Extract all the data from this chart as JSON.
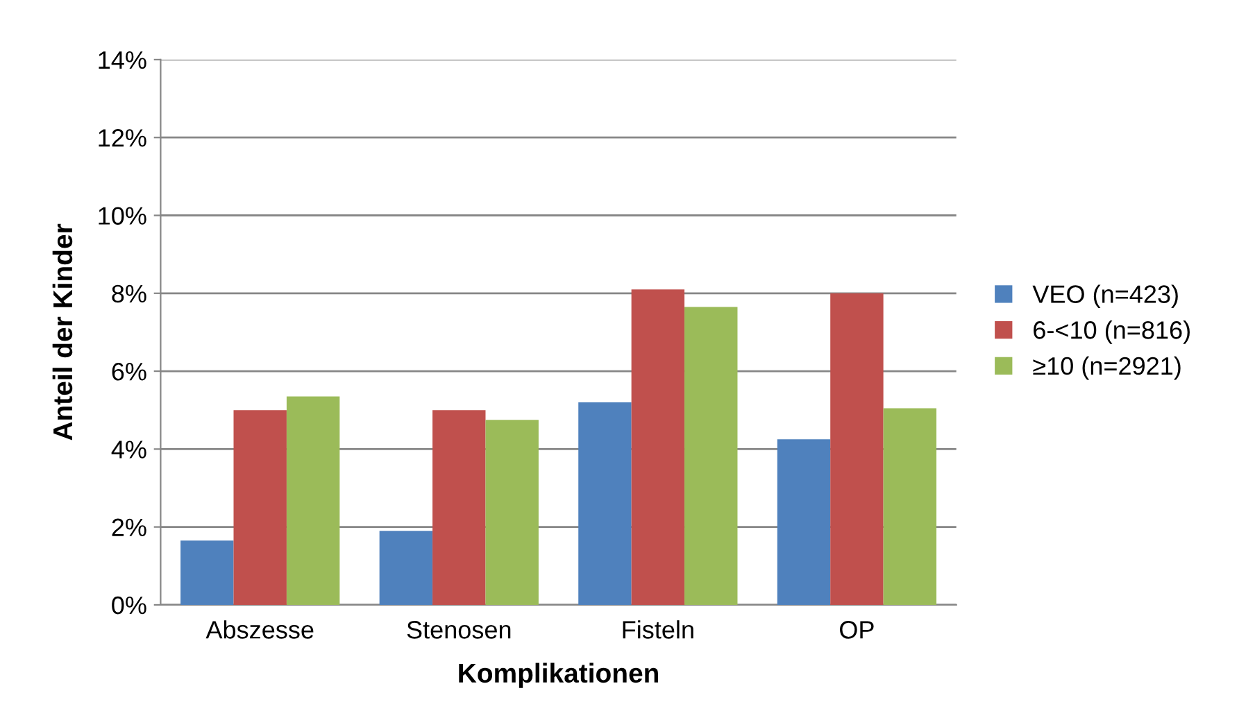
{
  "chart_data": {
    "type": "bar",
    "xlabel": "Komplikationen",
    "ylabel": "Anteil der Kinder",
    "categories": [
      "Abszesse",
      "Stenosen",
      "Fisteln",
      "OP"
    ],
    "series": [
      {
        "name": "VEO (n=423)",
        "color": "#4f81bd",
        "values": [
          1.65,
          1.9,
          5.2,
          4.25
        ]
      },
      {
        "name": "6-<10 (n=816)",
        "color": "#c0504d",
        "values": [
          5.0,
          5.0,
          8.1,
          8.0
        ]
      },
      {
        "name": "≥10 (n=2921)",
        "color": "#9bbb59",
        "values": [
          5.35,
          4.75,
          7.65,
          5.05
        ]
      }
    ],
    "ylim": [
      0,
      14
    ],
    "yticks": [
      {
        "value": 0,
        "label": "0%"
      },
      {
        "value": 2,
        "label": "2%"
      },
      {
        "value": 4,
        "label": "4%"
      },
      {
        "value": 6,
        "label": "6%"
      },
      {
        "value": 8,
        "label": "8%"
      },
      {
        "value": 10,
        "label": "10%"
      },
      {
        "value": 12,
        "label": "12%"
      },
      {
        "value": 14,
        "label": "14%"
      }
    ],
    "grid": "y",
    "legend": "right"
  }
}
